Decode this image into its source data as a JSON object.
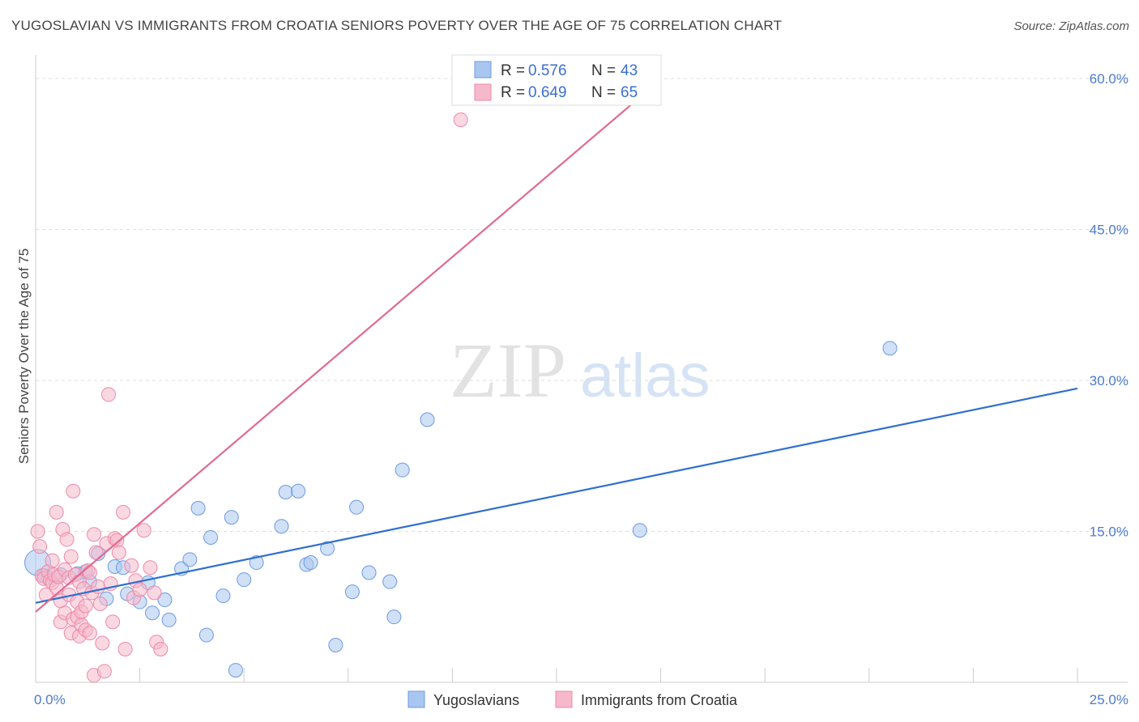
{
  "header": {
    "title": "YUGOSLAVIAN VS IMMIGRANTS FROM CROATIA SENIORS POVERTY OVER THE AGE OF 75 CORRELATION CHART",
    "source": "Source: ZipAtlas.com"
  },
  "watermark": {
    "zip": "ZIP",
    "atlas": "atlas"
  },
  "legend": {
    "r_label": "R =",
    "n_label": "N =",
    "series": [
      {
        "name": "Yugoslavians",
        "r": "0.576",
        "n": "43"
      },
      {
        "name": "Immigrants from Croatia",
        "r": "0.649",
        "n": "65"
      }
    ]
  },
  "chart_data": {
    "type": "scatter",
    "title": "YUGOSLAVIAN VS IMMIGRANTS FROM CROATIA SENIORS POVERTY OVER THE AGE OF 75 CORRELATION CHART",
    "xlabel": "",
    "ylabel": "Seniors Poverty Over the Age of 75",
    "xlim": [
      0,
      25
    ],
    "ylim": [
      0,
      60
    ],
    "x_tick_labels": [
      {
        "value": 0,
        "label": "0.0%"
      },
      {
        "value": 25,
        "label": "25.0%"
      }
    ],
    "y_tick_labels": [
      {
        "value": 15,
        "label": "15.0%"
      },
      {
        "value": 30,
        "label": "30.0%"
      },
      {
        "value": 45,
        "label": "45.0%"
      },
      {
        "value": 60,
        "label": "60.0%"
      }
    ],
    "colors": {
      "Yugoslavians": {
        "fill": "#a9c6f0",
        "stroke": "#6d9be0",
        "line": "#2f6fcf"
      },
      "Immigrants from Croatia": {
        "fill": "#f6b8cb",
        "stroke": "#ec8aa8",
        "line": "#e06a92"
      }
    },
    "series": [
      {
        "name": "Yugoslavians",
        "trend": {
          "x": [
            0,
            25
          ],
          "y": [
            7.9,
            29.2
          ]
        },
        "points": [
          [
            0.05,
            11.9
          ],
          [
            0.2,
            10.6
          ],
          [
            0.6,
            10.7
          ],
          [
            1.0,
            10.8
          ],
          [
            1.2,
            11.0
          ],
          [
            1.3,
            10.0
          ],
          [
            1.5,
            12.8
          ],
          [
            1.7,
            8.3
          ],
          [
            1.9,
            11.5
          ],
          [
            2.1,
            11.4
          ],
          [
            2.2,
            8.8
          ],
          [
            2.5,
            8.0
          ],
          [
            2.7,
            9.9
          ],
          [
            2.8,
            6.9
          ],
          [
            3.1,
            8.2
          ],
          [
            3.2,
            6.2
          ],
          [
            3.5,
            11.3
          ],
          [
            3.7,
            12.2
          ],
          [
            3.9,
            17.3
          ],
          [
            4.1,
            4.7
          ],
          [
            4.2,
            14.4
          ],
          [
            4.5,
            8.6
          ],
          [
            4.7,
            16.4
          ],
          [
            4.8,
            1.2
          ],
          [
            5.0,
            10.2
          ],
          [
            5.3,
            11.9
          ],
          [
            5.9,
            15.5
          ],
          [
            6.0,
            18.9
          ],
          [
            6.3,
            19.0
          ],
          [
            6.5,
            11.7
          ],
          [
            6.6,
            11.9
          ],
          [
            7.0,
            13.3
          ],
          [
            7.2,
            3.7
          ],
          [
            7.6,
            9.0
          ],
          [
            7.7,
            17.4
          ],
          [
            8.0,
            10.9
          ],
          [
            8.5,
            10.0
          ],
          [
            8.6,
            6.5
          ],
          [
            8.8,
            21.1
          ],
          [
            9.4,
            26.1
          ],
          [
            14.5,
            15.1
          ],
          [
            20.5,
            33.2
          ],
          [
            0.3,
            10.4
          ]
        ]
      },
      {
        "name": "Immigrants from Croatia",
        "trend": {
          "x": [
            0,
            15
          ],
          "y": [
            7.0,
            59.9
          ]
        },
        "points": [
          [
            0.05,
            15.0
          ],
          [
            0.1,
            13.5
          ],
          [
            0.15,
            10.6
          ],
          [
            0.2,
            10.3
          ],
          [
            0.25,
            8.7
          ],
          [
            0.3,
            11.0
          ],
          [
            0.35,
            10.1
          ],
          [
            0.4,
            9.9
          ],
          [
            0.45,
            10.7
          ],
          [
            0.5,
            16.9
          ],
          [
            0.5,
            9.4
          ],
          [
            0.55,
            10.5
          ],
          [
            0.6,
            8.1
          ],
          [
            0.6,
            6.0
          ],
          [
            0.65,
            15.2
          ],
          [
            0.7,
            11.2
          ],
          [
            0.7,
            6.9
          ],
          [
            0.75,
            14.2
          ],
          [
            0.8,
            10.4
          ],
          [
            0.8,
            8.7
          ],
          [
            0.85,
            4.9
          ],
          [
            0.85,
            12.5
          ],
          [
            0.9,
            19.0
          ],
          [
            0.9,
            6.3
          ],
          [
            0.95,
            10.7
          ],
          [
            1.0,
            6.5
          ],
          [
            1.0,
            8.0
          ],
          [
            1.05,
            10.0
          ],
          [
            1.05,
            4.6
          ],
          [
            1.1,
            7.0
          ],
          [
            1.1,
            5.7
          ],
          [
            1.15,
            9.3
          ],
          [
            1.2,
            7.6
          ],
          [
            1.2,
            5.2
          ],
          [
            1.25,
            11.1
          ],
          [
            1.3,
            10.9
          ],
          [
            1.3,
            4.9
          ],
          [
            1.35,
            8.9
          ],
          [
            1.4,
            14.7
          ],
          [
            1.4,
            0.7
          ],
          [
            1.45,
            12.9
          ],
          [
            1.5,
            9.5
          ],
          [
            1.55,
            7.8
          ],
          [
            1.6,
            3.9
          ],
          [
            1.65,
            1.1
          ],
          [
            1.7,
            13.8
          ],
          [
            1.75,
            28.6
          ],
          [
            1.8,
            9.8
          ],
          [
            1.85,
            6.0
          ],
          [
            1.9,
            14.3
          ],
          [
            1.95,
            14.1
          ],
          [
            2.0,
            12.9
          ],
          [
            2.1,
            16.9
          ],
          [
            2.15,
            3.3
          ],
          [
            2.3,
            11.6
          ],
          [
            2.35,
            8.4
          ],
          [
            2.4,
            10.1
          ],
          [
            2.5,
            9.2
          ],
          [
            2.6,
            15.1
          ],
          [
            2.75,
            11.4
          ],
          [
            2.85,
            8.9
          ],
          [
            2.9,
            4.0
          ],
          [
            3.0,
            3.3
          ],
          [
            0.4,
            12.1
          ],
          [
            10.2,
            55.9
          ]
        ]
      }
    ]
  }
}
